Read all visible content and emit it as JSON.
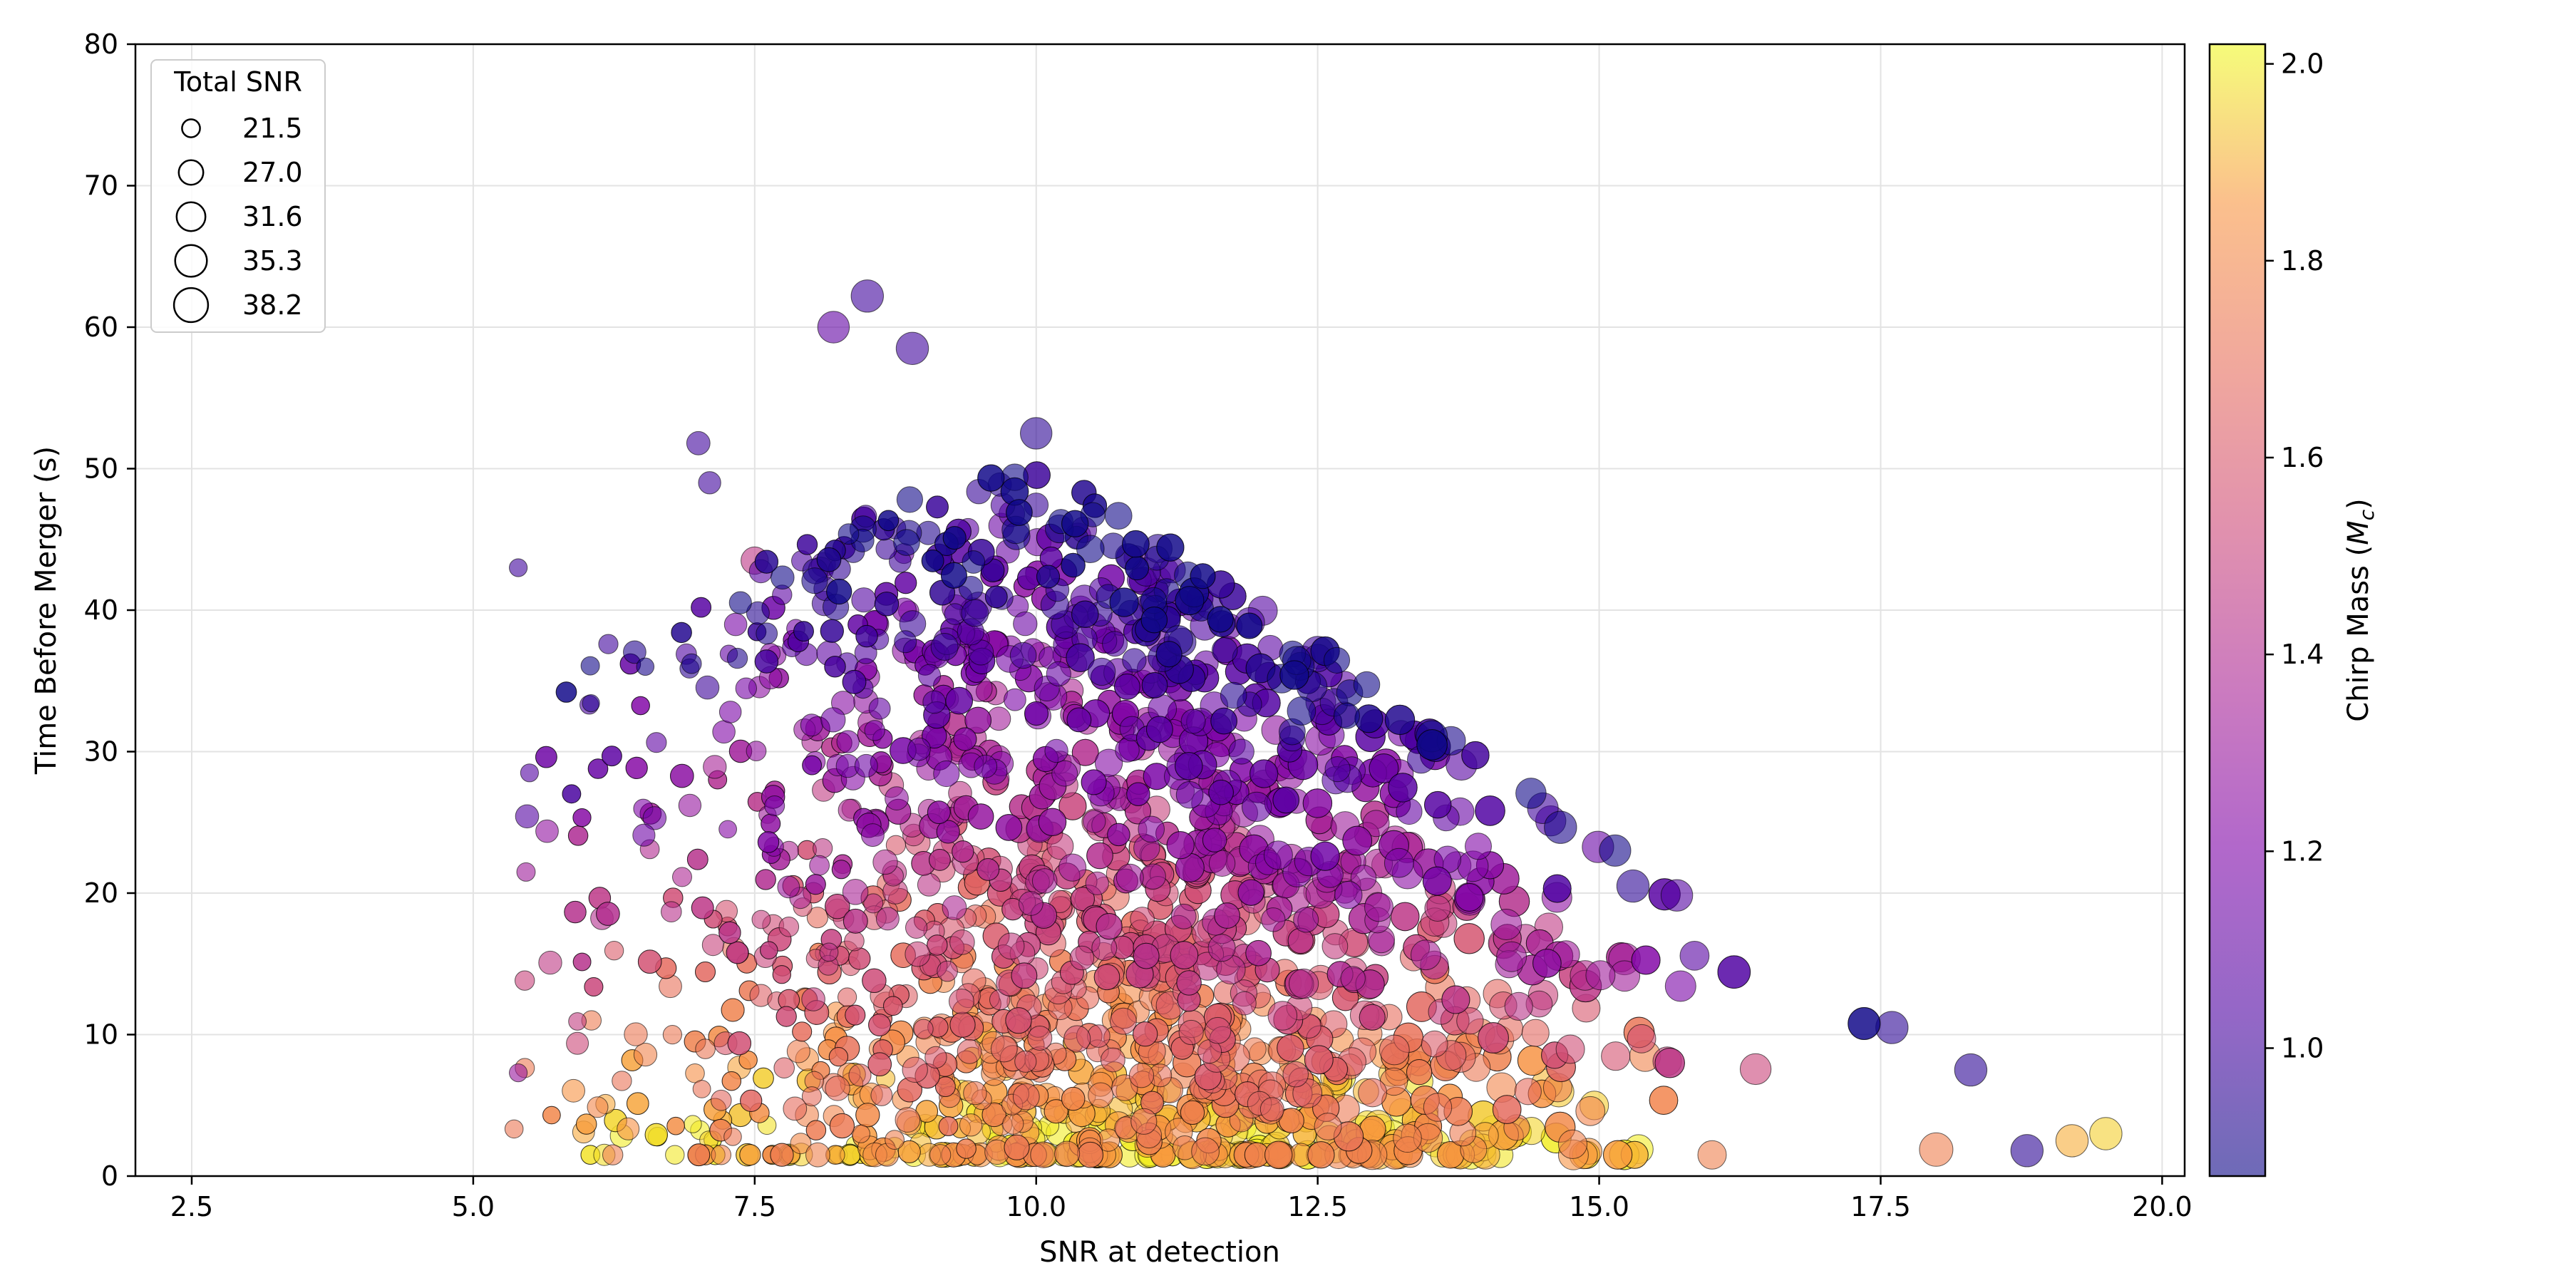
{
  "chart_data": {
    "type": "scatter",
    "title": "",
    "xlabel": "SNR at detection",
    "ylabel": "Time Before Merger (s)",
    "xlim": [
      2.0,
      20.2
    ],
    "ylim": [
      0,
      80
    ],
    "xticks": [
      2.5,
      5.0,
      7.5,
      10.0,
      12.5,
      15.0,
      17.5,
      20.0
    ],
    "xtick_labels": [
      "2.5",
      "5.0",
      "7.5",
      "10.0",
      "12.5",
      "15.0",
      "17.5",
      "20.0"
    ],
    "yticks": [
      0,
      10,
      20,
      30,
      40,
      50,
      60,
      70,
      80
    ],
    "ytick_labels": [
      "0",
      "10",
      "20",
      "30",
      "40",
      "50",
      "60",
      "70",
      "80"
    ],
    "grid": true,
    "size_encoding": "Total SNR",
    "color_encoding": "Chirp Mass",
    "colormap": "plasma",
    "legend": {
      "title": "Total SNR",
      "placement": "upper-left",
      "entries": [
        "21.5",
        "27.0",
        "31.6",
        "35.3",
        "38.2"
      ],
      "entry_values": [
        21.5,
        27.0,
        31.6,
        35.3,
        38.2
      ]
    },
    "colorbar": {
      "label": "Chirp Mass",
      "label_sub": "c",
      "range": [
        0.87,
        2.02
      ],
      "ticks": [
        1.0,
        1.2,
        1.4,
        1.6,
        1.8,
        2.0
      ],
      "tick_labels": [
        "1.0",
        "1.2",
        "1.4",
        "1.6",
        "1.8",
        "2.0"
      ]
    },
    "representative_points": [
      {
        "x": 5.4,
        "y": 43.0,
        "snr": 21.5,
        "mc": 1.0
      },
      {
        "x": 6.2,
        "y": 37.6,
        "snr": 22.5,
        "mc": 1.0
      },
      {
        "x": 5.5,
        "y": 28.5,
        "snr": 21.5,
        "mc": 1.05
      },
      {
        "x": 5.4,
        "y": 7.3,
        "snr": 21.5,
        "mc": 1.3
      },
      {
        "x": 7.0,
        "y": 51.8,
        "snr": 26.0,
        "mc": 1.0
      },
      {
        "x": 7.1,
        "y": 49.0,
        "snr": 25.0,
        "mc": 1.0
      },
      {
        "x": 8.5,
        "y": 62.2,
        "snr": 36.0,
        "mc": 1.0
      },
      {
        "x": 8.2,
        "y": 60.0,
        "snr": 35.0,
        "mc": 1.1
      },
      {
        "x": 8.9,
        "y": 58.5,
        "snr": 36.0,
        "mc": 1.0
      },
      {
        "x": 10.0,
        "y": 52.5,
        "snr": 35.0,
        "mc": 0.95
      },
      {
        "x": 12.5,
        "y": 37.0,
        "snr": 36.0,
        "mc": 1.0
      },
      {
        "x": 14.5,
        "y": 26.0,
        "snr": 34.0,
        "mc": 1.0
      },
      {
        "x": 15.3,
        "y": 20.5,
        "snr": 36.0,
        "mc": 0.95
      },
      {
        "x": 17.6,
        "y": 10.5,
        "snr": 36.0,
        "mc": 0.95
      },
      {
        "x": 18.3,
        "y": 7.5,
        "snr": 36.0,
        "mc": 0.95
      },
      {
        "x": 18.8,
        "y": 1.8,
        "snr": 36.0,
        "mc": 0.95
      },
      {
        "x": 19.5,
        "y": 3.0,
        "snr": 36.0,
        "mc": 1.95
      },
      {
        "x": 19.2,
        "y": 2.5,
        "snr": 36.0,
        "mc": 1.9
      },
      {
        "x": 12.7,
        "y": 7.0,
        "snr": 34.0,
        "mc": 2.0
      },
      {
        "x": 7.5,
        "y": 43.5,
        "snr": 30.0,
        "mc": 1.45
      }
    ]
  }
}
